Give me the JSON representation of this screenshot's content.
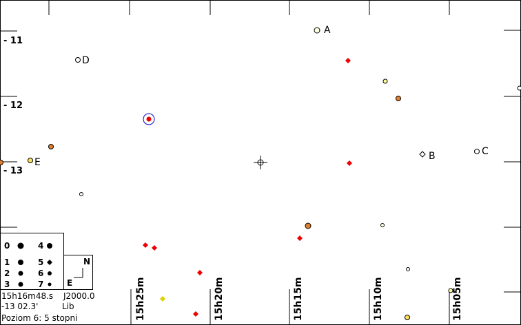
{
  "declination_labels": [
    "- 11",
    "- 12",
    "- 13"
  ],
  "ra_labels": [
    "15h25m",
    "15h20m",
    "15h15m",
    "15h10m",
    "15h05m"
  ],
  "objects": [
    {
      "label": "A"
    },
    {
      "label": "B"
    },
    {
      "label": "C"
    },
    {
      "label": "D"
    },
    {
      "label": "E"
    }
  ],
  "legend": {
    "magnitudes": [
      "0",
      "1",
      "2",
      "3",
      "4",
      "5",
      "6",
      "7"
    ],
    "compass": {
      "north": "N",
      "east": "E"
    }
  },
  "status": {
    "ra": "15h16m48.s",
    "epoch": "J2000.0",
    "dec": "-13 02.3'",
    "constellation": "Lib",
    "level": "Poziom 6: 5 stopni"
  }
}
